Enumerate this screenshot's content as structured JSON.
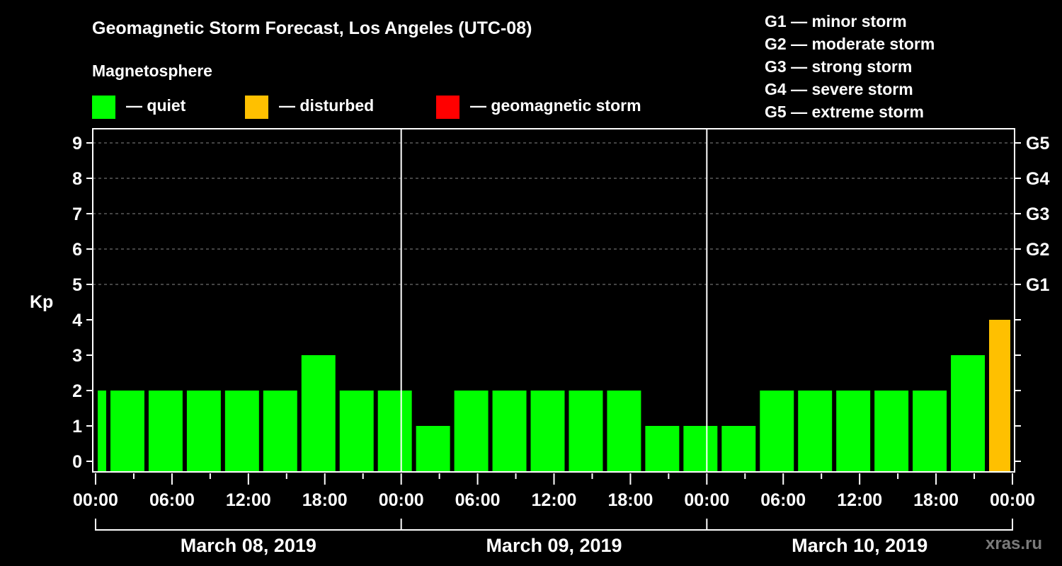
{
  "header": {
    "title": "Geomagnetic Storm Forecast, Los Angeles (UTC-08)",
    "subtitle": "Magnetosphere"
  },
  "legend": {
    "items": [
      {
        "label": "— quiet",
        "color": "#00ff00"
      },
      {
        "label": "— disturbed",
        "color": "#ffc000"
      },
      {
        "label": "— geomagnetic storm",
        "color": "#ff0000"
      }
    ]
  },
  "g_scale": {
    "items": [
      {
        "label": "G1 — minor storm"
      },
      {
        "label": "G2 — moderate storm"
      },
      {
        "label": "G3 — strong storm"
      },
      {
        "label": "G4 — severe storm"
      },
      {
        "label": "G5 — extreme storm"
      }
    ]
  },
  "axis": {
    "ylabel": "Kp",
    "watermark": "xras.ru"
  },
  "chart_data": {
    "type": "bar",
    "title": "Geomagnetic Storm Forecast, Los Angeles (UTC-08)",
    "ylabel": "Kp",
    "xlabel": "",
    "ylim": [
      0,
      9
    ],
    "yticks": [
      0,
      1,
      2,
      3,
      4,
      5,
      6,
      7,
      8,
      9
    ],
    "right_axis_labels": [
      {
        "kp": 5,
        "label": "G1"
      },
      {
        "kp": 6,
        "label": "G2"
      },
      {
        "kp": 7,
        "label": "G3"
      },
      {
        "kp": 8,
        "label": "G4"
      },
      {
        "kp": 9,
        "label": "G5"
      }
    ],
    "grid": "dashed horizontal at Kp 5-9",
    "x_tick_labels": [
      "00:00",
      "06:00",
      "12:00",
      "18:00",
      "00:00",
      "06:00",
      "12:00",
      "18:00",
      "00:00",
      "06:00",
      "12:00",
      "18:00",
      "00:00"
    ],
    "days": [
      "March 08, 2019",
      "March 09, 2019",
      "March 10, 2019"
    ],
    "hours_total": 72,
    "bars": [
      {
        "start_hour": 0,
        "end_hour": 1,
        "kp": 2,
        "status": "quiet"
      },
      {
        "start_hour": 1,
        "end_hour": 4,
        "kp": 2,
        "status": "quiet"
      },
      {
        "start_hour": 4,
        "end_hour": 7,
        "kp": 2,
        "status": "quiet"
      },
      {
        "start_hour": 7,
        "end_hour": 10,
        "kp": 2,
        "status": "quiet"
      },
      {
        "start_hour": 10,
        "end_hour": 13,
        "kp": 2,
        "status": "quiet"
      },
      {
        "start_hour": 13,
        "end_hour": 16,
        "kp": 2,
        "status": "quiet"
      },
      {
        "start_hour": 16,
        "end_hour": 19,
        "kp": 3,
        "status": "quiet"
      },
      {
        "start_hour": 19,
        "end_hour": 22,
        "kp": 2,
        "status": "quiet"
      },
      {
        "start_hour": 22,
        "end_hour": 25,
        "kp": 2,
        "status": "quiet"
      },
      {
        "start_hour": 25,
        "end_hour": 28,
        "kp": 1,
        "status": "quiet"
      },
      {
        "start_hour": 28,
        "end_hour": 31,
        "kp": 2,
        "status": "quiet"
      },
      {
        "start_hour": 31,
        "end_hour": 34,
        "kp": 2,
        "status": "quiet"
      },
      {
        "start_hour": 34,
        "end_hour": 37,
        "kp": 2,
        "status": "quiet"
      },
      {
        "start_hour": 37,
        "end_hour": 40,
        "kp": 2,
        "status": "quiet"
      },
      {
        "start_hour": 40,
        "end_hour": 43,
        "kp": 2,
        "status": "quiet"
      },
      {
        "start_hour": 43,
        "end_hour": 46,
        "kp": 1,
        "status": "quiet"
      },
      {
        "start_hour": 46,
        "end_hour": 49,
        "kp": 1,
        "status": "quiet"
      },
      {
        "start_hour": 49,
        "end_hour": 52,
        "kp": 1,
        "status": "quiet"
      },
      {
        "start_hour": 52,
        "end_hour": 55,
        "kp": 2,
        "status": "quiet"
      },
      {
        "start_hour": 55,
        "end_hour": 58,
        "kp": 2,
        "status": "quiet"
      },
      {
        "start_hour": 58,
        "end_hour": 61,
        "kp": 2,
        "status": "quiet"
      },
      {
        "start_hour": 61,
        "end_hour": 64,
        "kp": 2,
        "status": "quiet"
      },
      {
        "start_hour": 64,
        "end_hour": 67,
        "kp": 2,
        "status": "quiet"
      },
      {
        "start_hour": 67,
        "end_hour": 70,
        "kp": 3,
        "status": "quiet"
      },
      {
        "start_hour": 70,
        "end_hour": 72,
        "kp": 4,
        "status": "disturbed"
      }
    ],
    "colors": {
      "quiet": "#00ff00",
      "disturbed": "#ffc000",
      "storm": "#ff0000"
    }
  }
}
